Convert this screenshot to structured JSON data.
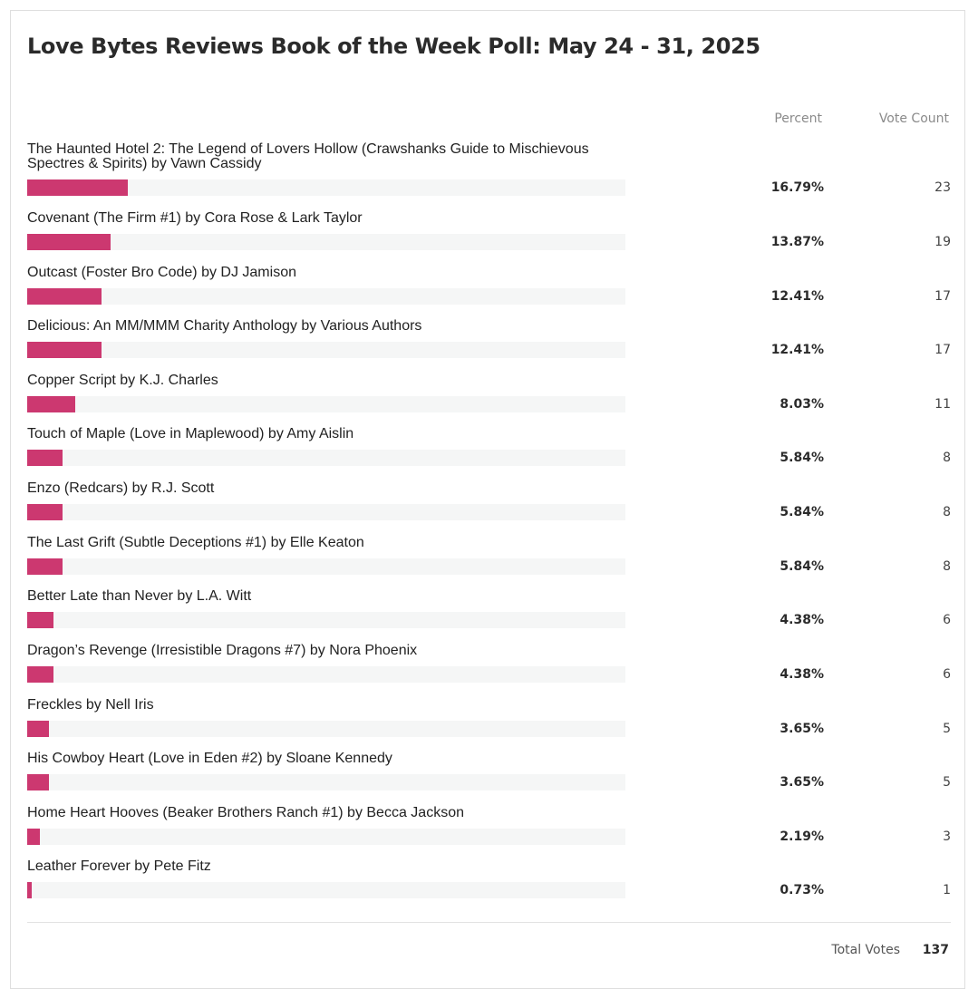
{
  "poll": {
    "title": "Love Bytes Reviews Book of the Week Poll: May 24 - 31, 2025",
    "columns": {
      "percent": "Percent",
      "votes": "Vote Count"
    },
    "total_label": "Total Votes",
    "total_value": "137",
    "bar_color": "#cc3870",
    "track_color": "#f5f6f6"
  },
  "chart_data": {
    "type": "bar",
    "categories": [
      "The Haunted Hotel 2: The Legend of Lovers Hollow (Crawshanks Guide to Mischievous Spectres & Spirits) by Vawn Cassidy",
      "Covenant (The Firm #1) by Cora Rose & Lark Taylor",
      "Outcast (Foster Bro Code) by DJ Jamison",
      "Delicious: An MM/MMM Charity Anthology by Various Authors",
      "Copper Script by K.J. Charles",
      "Touch of Maple (Love in Maplewood) by Amy Aislin",
      "Enzo (Redcars) by R.J. Scott",
      "The Last Grift (Subtle Deceptions #1) by Elle Keaton",
      "Better Late than Never by L.A. Witt",
      "Dragon’s Revenge (Irresistible Dragons #7) by Nora Phoenix",
      "Freckles by Nell Iris",
      "His Cowboy Heart (Love in Eden #2) by Sloane Kennedy",
      "Home Heart Hooves (Beaker Brothers Ranch #1) by Becca Jackson",
      "Leather Forever by Pete Fitz"
    ],
    "percent_labels": [
      "16.79%",
      "13.87%",
      "12.41%",
      "12.41%",
      "8.03%",
      "5.84%",
      "5.84%",
      "5.84%",
      "4.38%",
      "4.38%",
      "3.65%",
      "3.65%",
      "2.19%",
      "0.73%"
    ],
    "percent_values": [
      16.79,
      13.87,
      12.41,
      12.41,
      8.03,
      5.84,
      5.84,
      5.84,
      4.38,
      4.38,
      3.65,
      3.65,
      2.19,
      0.73
    ],
    "values": [
      23,
      19,
      17,
      17,
      11,
      8,
      8,
      8,
      6,
      6,
      5,
      5,
      3,
      1
    ]
  }
}
